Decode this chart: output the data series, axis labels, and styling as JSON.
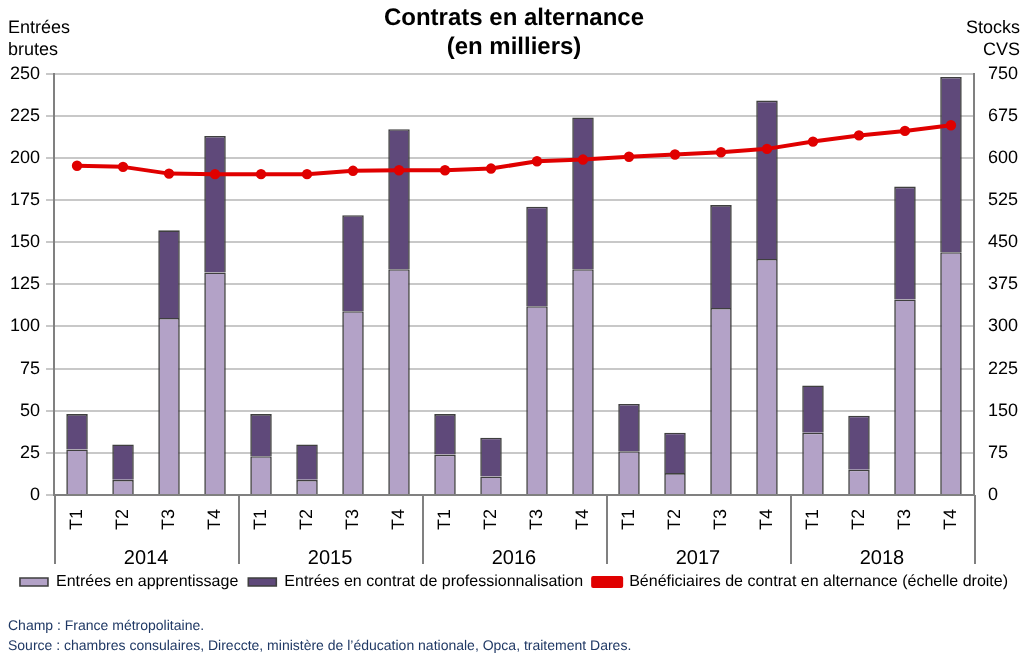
{
  "chart_data": {
    "type": "bar",
    "title": "Contrats en alternance",
    "subtitle": "(en milliers)",
    "ylabel": "Entrées brutes",
    "y2label": "Stocks CVS",
    "categories": [
      "T1",
      "T2",
      "T3",
      "T4",
      "T1",
      "T2",
      "T3",
      "T4",
      "T1",
      "T2",
      "T3",
      "T4",
      "T1",
      "T2",
      "T3",
      "T4",
      "T1",
      "T2",
      "T3",
      "T4"
    ],
    "stacked": true,
    "series": [
      {
        "name": "Entrées en apprentissage",
        "color": "#b3a2c7",
        "values": [
          27,
          9,
          105,
          132,
          23,
          9,
          109,
          134,
          24,
          11,
          112,
          134,
          26,
          13,
          111,
          140,
          37,
          15,
          116,
          144
        ]
      },
      {
        "name": "Entrées en contrat de professionnalisation",
        "color": "#5f497a",
        "values": [
          21,
          21,
          52,
          81,
          25,
          21,
          57,
          83,
          24,
          23,
          59,
          90,
          28,
          24,
          61,
          94,
          28,
          32,
          67,
          104
        ]
      },
      {
        "name": "Bénéficiaires de contrat en alternance (échelle droite)",
        "type": "line",
        "axis": "y2",
        "color": "#e00000",
        "values": [
          586,
          584,
          572,
          571,
          571,
          571,
          577,
          578,
          578,
          581,
          594,
          597,
          602,
          606,
          610,
          616,
          629,
          640,
          648,
          658
        ]
      }
    ],
    "ylim": [
      0,
      250
    ],
    "yticks": [
      0,
      25,
      50,
      75,
      100,
      125,
      150,
      175,
      200,
      225,
      250
    ],
    "y2lim": [
      0,
      750
    ],
    "y2ticks": [
      0,
      75,
      150,
      225,
      300,
      375,
      450,
      525,
      600,
      675,
      750
    ],
    "grid": "y",
    "legend": "bottom",
    "marker": "circle",
    "line_style": "solid",
    "annotations": [
      "2014",
      "2015",
      "2016",
      "2017",
      "2018",
      "Champ : France métropolitaine.",
      "Source : chambres consulaires, Direccte, ministère de l’éducation nationale, Opca, traitement Dares."
    ]
  }
}
